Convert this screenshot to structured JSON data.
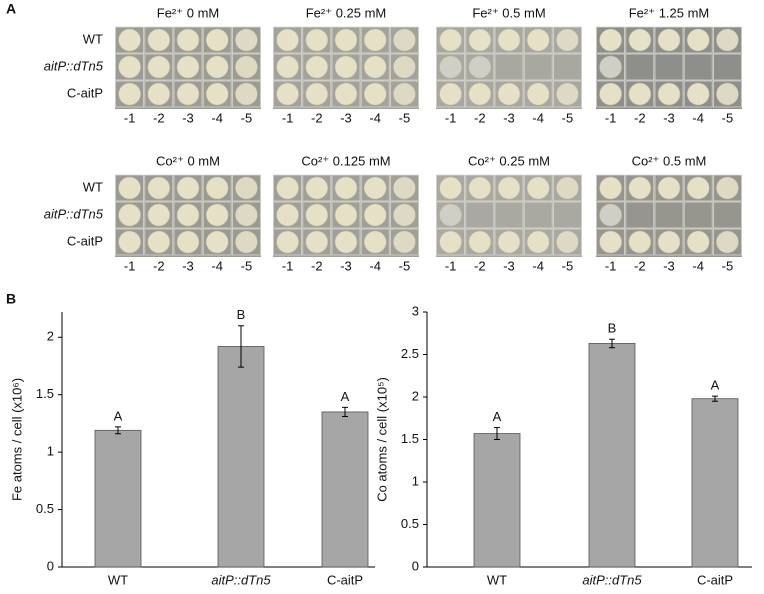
{
  "panel_a": {
    "label": "A",
    "strains": [
      "WT",
      "aitP::dTn5",
      "C-aitP"
    ],
    "dilutions": [
      "-1",
      "-2",
      "-3",
      "-4",
      "-5"
    ],
    "groups": [
      {
        "conditions": [
          "Fe²⁺ 0 mM",
          "Fe²⁺ 0.25 mM",
          "Fe²⁺ 0.5 mM",
          "Fe²⁺ 1.25 mM"
        ]
      },
      {
        "conditions": [
          "Co²⁺ 0 mM",
          "Co²⁺ 0.125 mM",
          "Co²⁺ 0.25 mM",
          "Co²⁺ 0.5 mM"
        ]
      }
    ]
  },
  "panel_b_label": "B",
  "chart_data": [
    {
      "type": "bar",
      "ylabel": "Fe atoms / cell (x10⁶)",
      "categories": [
        "WT",
        "aitP::dTn5",
        "C-aitP"
      ],
      "values": [
        1.19,
        1.92,
        1.35
      ],
      "errors": [
        0.03,
        0.18,
        0.04
      ],
      "annotations": [
        "A",
        "B",
        "A"
      ],
      "color": "#a6a6a6",
      "ylim": [
        0,
        2.22
      ],
      "yticks": [
        0,
        0.5,
        1,
        1.5,
        2
      ]
    },
    {
      "type": "bar",
      "ylabel": "Co atoms / cell (x10⁵)",
      "categories": [
        "WT",
        "aitP::dTn5",
        "C-aitP"
      ],
      "values": [
        1.57,
        2.63,
        1.98
      ],
      "errors": [
        0.07,
        0.05,
        0.03
      ],
      "annotations": [
        "A",
        "B",
        "A"
      ],
      "color": "#a6a6a6",
      "ylim": [
        0,
        3
      ],
      "yticks": [
        0,
        0.5,
        1,
        1.5,
        2,
        2.5,
        3
      ]
    }
  ]
}
